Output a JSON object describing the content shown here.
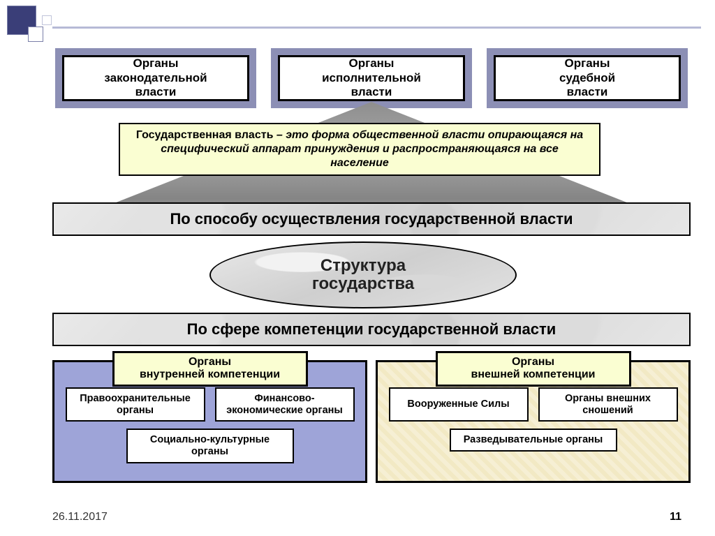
{
  "colors": {
    "shadow": "#8c8fb5",
    "panel_lilac": "#9ea4d8",
    "panel_cream": "#f6efd4",
    "yellow_box": "#fafed2",
    "border": "#000000",
    "decor_dark": "#3a3e78",
    "decor_line": "#b6bad6"
  },
  "top_boxes": [
    "Органы\nзаконодательной\nвласти",
    "Органы\nисполнительной\nвласти",
    "Органы\nсудебной\nвласти"
  ],
  "definition": {
    "bold": "Государственная власть",
    "rest": " – это форма общественной власти опирающаяся на специфический аппарат принуждения и распространяющаяся на все население"
  },
  "band1": "По способу осуществления государственной власти",
  "center_ellipse": "Структура\nгосударства",
  "band2": "По сфере компетенции государственной власти",
  "panels": {
    "left": {
      "title": "Органы\nвнутренней компетенции",
      "row1": [
        "Правоохранительные органы",
        "Финансово-экономические органы"
      ],
      "row2": [
        "Социально-культурные органы"
      ]
    },
    "right": {
      "title": "Органы\nвнешней компетенции",
      "row1": [
        "Вооруженные Силы",
        "Органы внешних сношений"
      ],
      "row2": [
        "Разведывательные органы"
      ]
    }
  },
  "footer": {
    "date": "26.11.2017",
    "page": "11"
  }
}
